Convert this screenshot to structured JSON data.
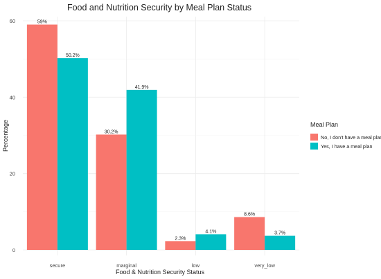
{
  "chart_data": {
    "type": "bar",
    "title": "Food and Nutrition Security by Meal Plan Status",
    "xlabel": "Food & Nutrition Security Status",
    "ylabel": "Percentage",
    "categories": [
      "secure",
      "marginal",
      "low",
      "very_low"
    ],
    "series": [
      {
        "name": "No, I don't have a meal plan",
        "values": [
          59,
          30.2,
          2.3,
          8.6
        ],
        "labels": [
          "59%",
          "30.2%",
          "2.3%",
          "8.6%"
        ],
        "color": "#F8766D"
      },
      {
        "name": "Yes, I have a meal plan",
        "values": [
          50.2,
          41.9,
          4.1,
          3.7
        ],
        "labels": [
          "50.2%",
          "41.9%",
          "4.1%",
          "3.7%"
        ],
        "color": "#00BFC4"
      }
    ],
    "ylim": [
      0,
      60
    ],
    "yticks": [
      0,
      20,
      40,
      60
    ],
    "grid": true,
    "legend": {
      "title": "Meal Plan",
      "position": "right"
    }
  }
}
